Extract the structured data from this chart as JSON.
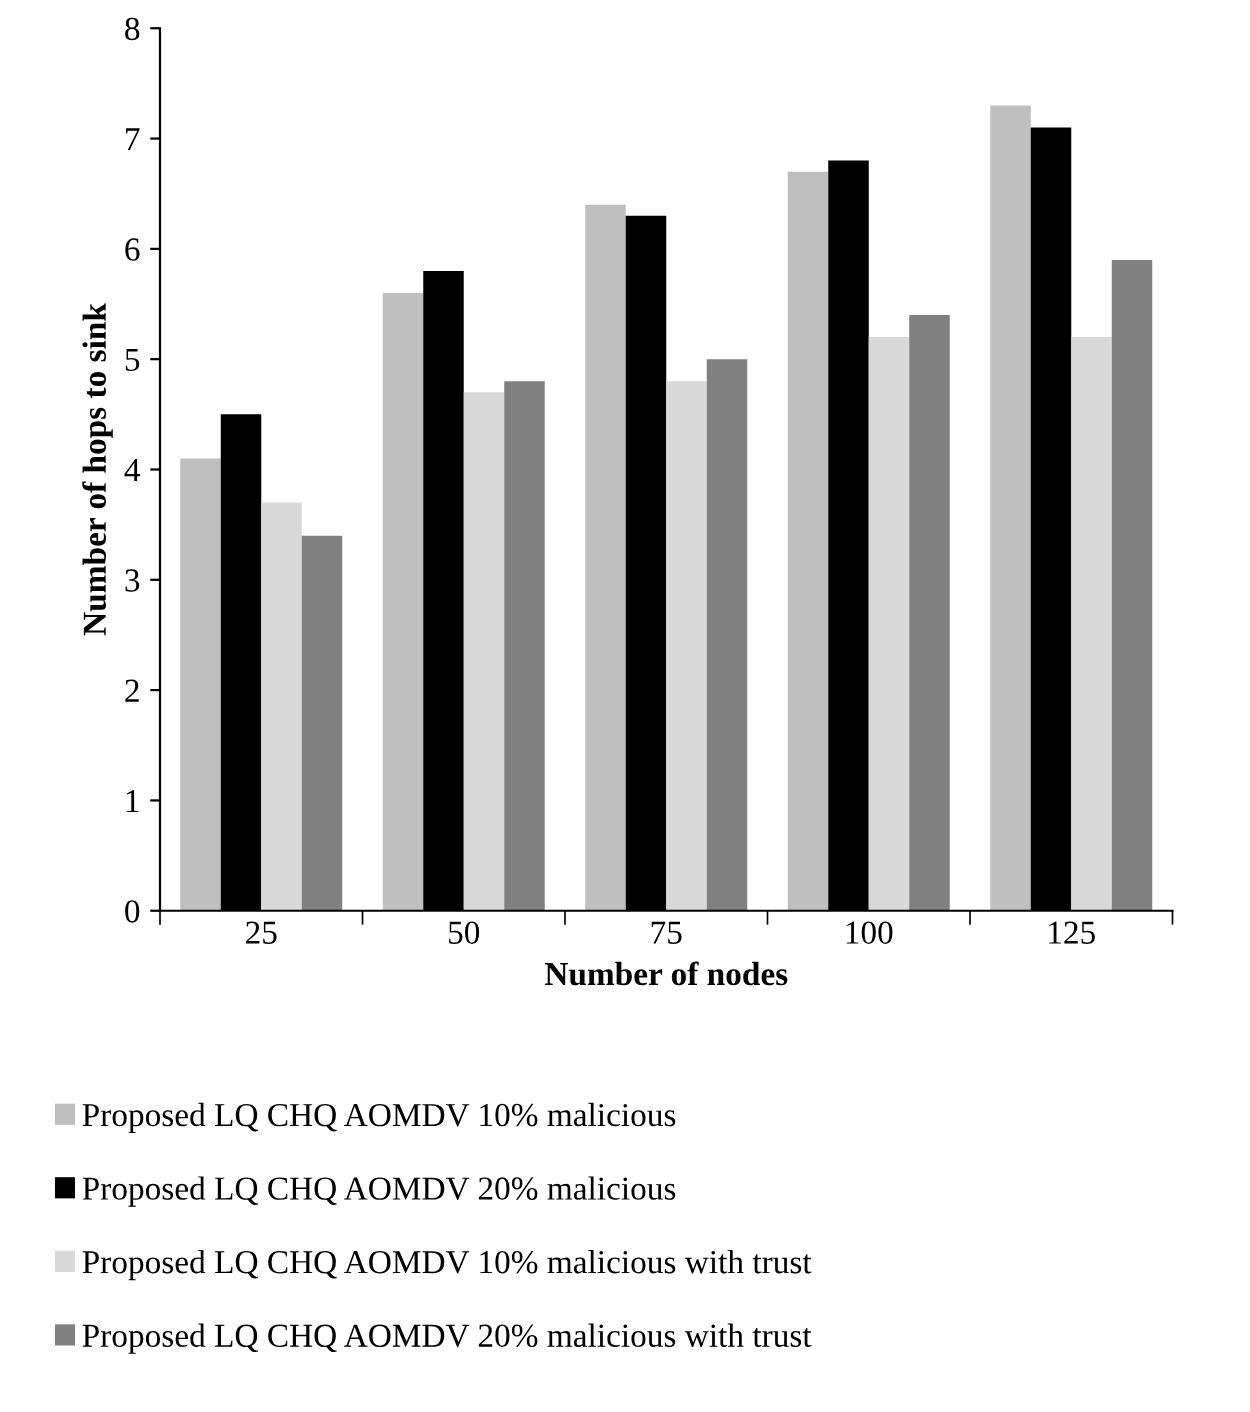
{
  "chart_data": {
    "type": "bar",
    "xlabel": "Number of nodes",
    "ylabel": "Number of hops to sink",
    "categories": [
      "25",
      "50",
      "75",
      "100",
      "125"
    ],
    "series": [
      {
        "name": "Proposed LQ CHQ AOMDV 10% malicious",
        "color": "#bfbfbf",
        "values": [
          4.1,
          5.6,
          6.4,
          6.7,
          7.3
        ]
      },
      {
        "name": "Proposed LQ CHQ AOMDV 20% malicious",
        "color": "#000000",
        "values": [
          4.5,
          5.8,
          6.3,
          6.8,
          7.1
        ]
      },
      {
        "name": "Proposed LQ CHQ AOMDV 10% malicious with trust",
        "color": "#d9d9d9",
        "values": [
          3.7,
          4.7,
          4.8,
          5.2,
          5.2
        ]
      },
      {
        "name": "Proposed LQ CHQ AOMDV 20% malicious with trust",
        "color": "#808080",
        "values": [
          3.4,
          4.8,
          5.0,
          5.4,
          5.9
        ]
      }
    ],
    "ylim": [
      0,
      8
    ],
    "yticks": [
      0,
      1,
      2,
      3,
      4,
      5,
      6,
      7,
      8
    ],
    "grid": false,
    "legend": "bottom"
  }
}
